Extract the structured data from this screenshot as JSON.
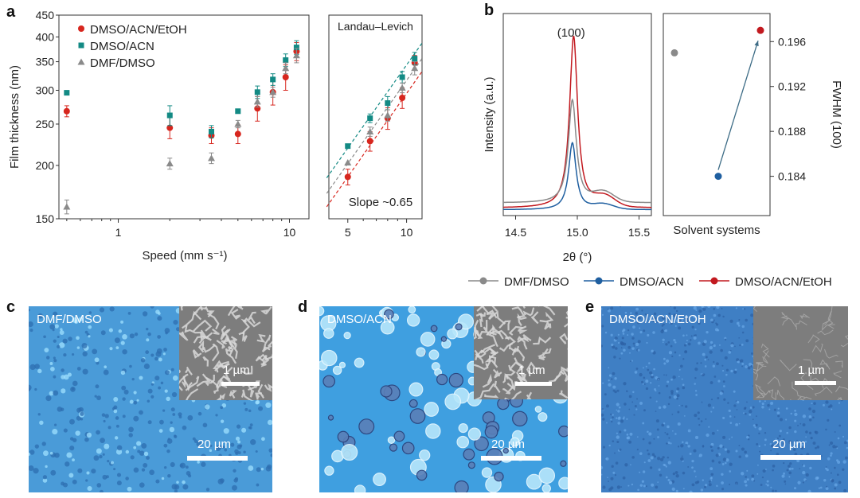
{
  "panel_labels": {
    "a": "a",
    "b": "b",
    "c": "c",
    "d": "d",
    "e": "e"
  },
  "colors": {
    "dmf_dmso": "#8a8a8a",
    "dmso_acn": "#138a84",
    "dmso_acn_etoh": "#d7261e",
    "wide_xrd_dmf": "#8a8a8a",
    "wide_xrd_acn": "#1f5fa0",
    "wide_xrd_etoh": "#c2191f",
    "micro_c": "#4a9bd8",
    "micro_d": "#3f9fe0",
    "micro_e": "#3f7fc4"
  },
  "chart_data": [
    {
      "id": "a_main",
      "type": "scatter",
      "xscale": "log",
      "yscale": "log",
      "xlim": [
        0.45,
        13
      ],
      "ylim": [
        150,
        450
      ],
      "xlabel": "Speed (mm s⁻¹)",
      "ylabel": "Film thickness (nm)",
      "xticks": [
        {
          "v": 1,
          "label": "1"
        },
        {
          "v": 10,
          "label": "10"
        }
      ],
      "yticks": [
        {
          "v": 150,
          "label": "150"
        },
        {
          "v": 200,
          "label": "200"
        },
        {
          "v": 250,
          "label": "250"
        },
        {
          "v": 300,
          "label": "300"
        },
        {
          "v": 350,
          "label": "350"
        },
        {
          "v": 400,
          "label": "400"
        },
        {
          "v": 450,
          "label": "450"
        }
      ],
      "legend": "top-left",
      "series": [
        {
          "name": "DMSO/ACN/EtOH",
          "marker": "circle",
          "color": "#d7261e",
          "x": [
            0.5,
            2,
            3.5,
            5,
            6.5,
            8,
            9.5,
            11
          ],
          "y": [
            268,
            245,
            235,
            237,
            272,
            297,
            322,
            370
          ],
          "err": [
            8,
            14,
            10,
            12,
            18,
            20,
            22,
            18
          ]
        },
        {
          "name": "DMSO/ACN",
          "marker": "square",
          "color": "#138a84",
          "x": [
            0.5,
            2,
            3.5,
            5,
            6.5,
            8,
            9.5,
            11
          ],
          "y": [
            296,
            262,
            240,
            268,
            297,
            318,
            353,
            378
          ],
          "err": [
            0,
            14,
            8,
            0,
            10,
            10,
            12,
            14
          ]
        },
        {
          "name": "DMF/DMSO",
          "marker": "triangle",
          "color": "#8a8a8a",
          "x": [
            0.5,
            2,
            3.5,
            5,
            6.5,
            8,
            9.5,
            11
          ],
          "y": [
            160,
            202,
            208,
            250,
            282,
            297,
            338,
            362
          ],
          "err": [
            6,
            6,
            6,
            5,
            8,
            8,
            10,
            14
          ]
        }
      ]
    },
    {
      "id": "a_inset",
      "type": "scatter",
      "title": "Landau–Levich",
      "annotation": "Slope  ~0.65",
      "xscale": "log",
      "yscale": "log",
      "xlim": [
        4,
        12
      ],
      "ylim": [
        150,
        450
      ],
      "xticks": [
        {
          "v": 5,
          "label": "5"
        },
        {
          "v": 10,
          "label": "10"
        }
      ],
      "fit_slope": 0.65,
      "series": [
        {
          "name": "DMSO/ACN/EtOH",
          "marker": "circle",
          "color": "#d7261e",
          "x": [
            5,
            6.5,
            8,
            9.5,
            11
          ],
          "y": [
            188,
            228,
            258,
            288,
            348
          ],
          "err": [
            8,
            12,
            15,
            16,
            14
          ],
          "fit": [
            [
              3.9,
              160
            ],
            [
              12,
              332
            ]
          ]
        },
        {
          "name": "DMSO/ACN",
          "marker": "square",
          "color": "#138a84",
          "x": [
            5,
            6.5,
            8,
            9.5,
            11
          ],
          "y": [
            222,
            258,
            280,
            322,
            356
          ],
          "err": [
            0,
            6,
            10,
            10,
            12
          ],
          "fit": [
            [
              3.9,
              187
            ],
            [
              12,
              387
            ]
          ]
        },
        {
          "name": "DMF/DMSO",
          "marker": "triangle",
          "color": "#8a8a8a",
          "x": [
            5,
            6.5,
            8,
            9.5,
            11
          ],
          "y": [
            203,
            240,
            262,
            304,
            338
          ],
          "err": [
            0,
            6,
            8,
            8,
            12
          ],
          "fit": [
            [
              3.9,
              172
            ],
            [
              12,
              356
            ]
          ]
        }
      ]
    },
    {
      "id": "b_xrd",
      "type": "line",
      "xlabel": "2θ (°)",
      "ylabel": "Intensity (a.u.)",
      "xlim": [
        14.4,
        15.6
      ],
      "xticks": [
        {
          "v": 14.5,
          "label": "14.5"
        },
        {
          "v": 15.0,
          "label": "15.0"
        },
        {
          "v": 15.5,
          "label": "15.5"
        }
      ],
      "peak_label": "(100)",
      "peak_label_x": 14.95,
      "series": [
        {
          "name": "DMSO/ACN/EtOH",
          "color": "#c2191f",
          "peak_x": 14.97,
          "peak": 1.0,
          "base": 0.03,
          "fwhm": 0.197
        },
        {
          "name": "DMF/DMSO",
          "color": "#8a8a8a",
          "peak_x": 14.96,
          "peak": 0.6,
          "base": 0.06,
          "fwhm": 0.195
        },
        {
          "name": "DMSO/ACN",
          "color": "#1f5fa0",
          "peak_x": 14.96,
          "peak": 0.39,
          "base": 0.02,
          "fwhm": 0.184
        }
      ]
    },
    {
      "id": "b_fwhm",
      "type": "scatter",
      "xlabel": "Solvent systems",
      "ylabel": "FWHM (100)",
      "ylim": [
        0.1805,
        0.1985
      ],
      "yticks": [
        {
          "v": 0.184,
          "label": "0.184"
        },
        {
          "v": 0.188,
          "label": "0.188"
        },
        {
          "v": 0.192,
          "label": "0.192"
        },
        {
          "v": 0.196,
          "label": "0.196"
        }
      ],
      "series": [
        {
          "name": "DMF/DMSO",
          "color": "#8a8a8a",
          "x": 1,
          "y": 0.195
        },
        {
          "name": "DMSO/ACN",
          "color": "#1f5fa0",
          "x": 2,
          "y": 0.184
        },
        {
          "name": "DMSO/ACN/EtOH",
          "color": "#c2191f",
          "x": 3,
          "y": 0.197
        }
      ],
      "arrow_from": "DMSO/ACN",
      "arrow_to": "DMSO/ACN/EtOH"
    }
  ],
  "b_legend": [
    {
      "label": "DMF/DMSO",
      "color": "#8a8a8a"
    },
    {
      "label": "DMSO/ACN",
      "color": "#1f5fa0"
    },
    {
      "label": "DMSO/ACN/EtOH",
      "color": "#c2191f"
    }
  ],
  "micrographs": {
    "c": {
      "label": "DMF/DMSO",
      "scale": "20 µm",
      "inset_scale": "1 µm"
    },
    "d": {
      "label": "DMSO/ACN",
      "scale": "20 µm",
      "inset_scale": "1 µm"
    },
    "e": {
      "label": "DMSO/ACN/EtOH",
      "scale": "20 µm",
      "inset_scale": "1 µm"
    }
  }
}
